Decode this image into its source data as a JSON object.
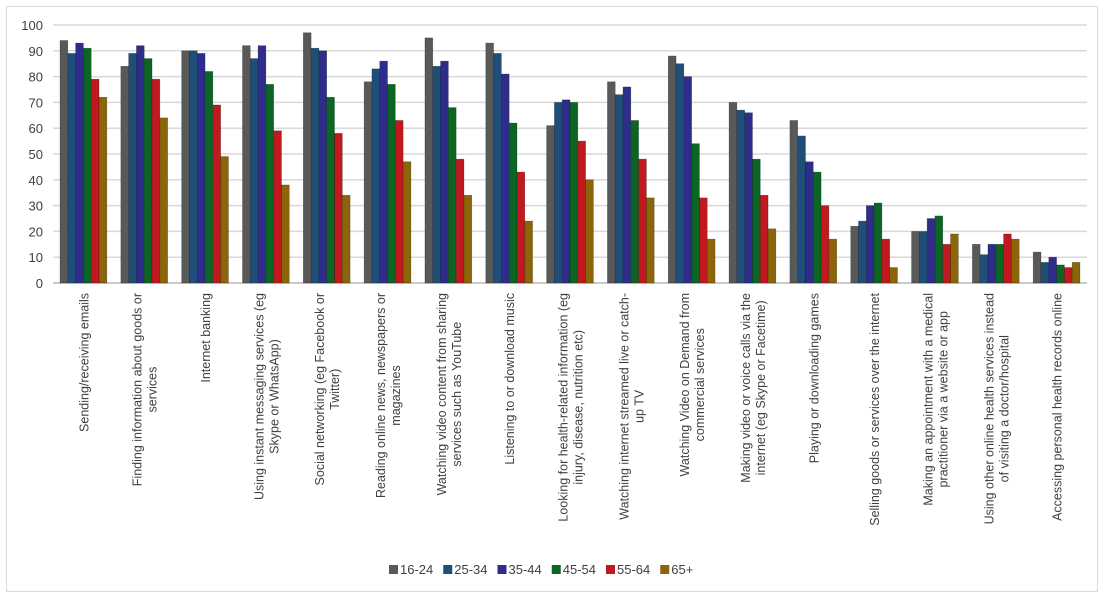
{
  "chart_data": {
    "type": "bar",
    "title": "",
    "xlabel": "",
    "ylabel": "",
    "ylim": [
      0,
      100
    ],
    "yticks": [
      0,
      10,
      20,
      30,
      40,
      50,
      60,
      70,
      80,
      90,
      100
    ],
    "grid": true,
    "legend_position": "bottom",
    "categories": [
      [
        "Sending/receiving emails"
      ],
      [
        "Finding information about goods or",
        "services"
      ],
      [
        "Internet banking"
      ],
      [
        "Using instant messaging services (eg",
        "Skype or WhatsApp)"
      ],
      [
        "Social networking (eg Facebook or",
        "Twitter)"
      ],
      [
        "Reading online news, newspapers or",
        "magazines"
      ],
      [
        "Watching video content from sharing",
        "services such as YouTube"
      ],
      [
        "Listening to or download music"
      ],
      [
        "Looking for health-related information (eg",
        "injury, disease, nutrition etc)"
      ],
      [
        "Watching internet streamed live or catch-",
        "up TV"
      ],
      [
        "Watching Video on Demand from",
        "commercial services"
      ],
      [
        "Making video or voice calls via the",
        "internet (eg Skype or Facetime)"
      ],
      [
        "Playing or downloading games"
      ],
      [
        "Selling goods or services over the internet"
      ],
      [
        "Making an appointment with a medical",
        "practitioner via a website or app"
      ],
      [
        "Using other online health services instead",
        "of visiting a doctor/hospital"
      ],
      [
        "Accessing personal health records online"
      ]
    ],
    "series": [
      {
        "name": "16-24",
        "color": "#595959",
        "values": [
          94,
          84,
          90,
          92,
          97,
          78,
          95,
          93,
          61,
          78,
          88,
          70,
          63,
          22,
          20,
          15,
          12
        ]
      },
      {
        "name": "25-34",
        "color": "#1f4e79",
        "values": [
          89,
          89,
          90,
          87,
          91,
          83,
          84,
          89,
          70,
          73,
          85,
          67,
          57,
          24,
          20,
          11,
          8
        ]
      },
      {
        "name": "35-44",
        "color": "#2e2e8a",
        "values": [
          93,
          92,
          89,
          92,
          90,
          86,
          86,
          81,
          71,
          76,
          80,
          66,
          47,
          30,
          25,
          15,
          10
        ]
      },
      {
        "name": "45-54",
        "color": "#0b6623",
        "values": [
          91,
          87,
          82,
          77,
          72,
          77,
          68,
          62,
          70,
          63,
          54,
          48,
          43,
          31,
          26,
          15,
          7
        ]
      },
      {
        "name": "55-64",
        "color": "#c0191f",
        "values": [
          79,
          79,
          69,
          59,
          58,
          63,
          48,
          43,
          55,
          48,
          33,
          34,
          30,
          17,
          15,
          19,
          6
        ]
      },
      {
        "name": "65+",
        "color": "#8b6508",
        "values": [
          72,
          64,
          49,
          38,
          34,
          47,
          34,
          24,
          40,
          33,
          17,
          21,
          17,
          6,
          19,
          17,
          8
        ]
      }
    ]
  }
}
